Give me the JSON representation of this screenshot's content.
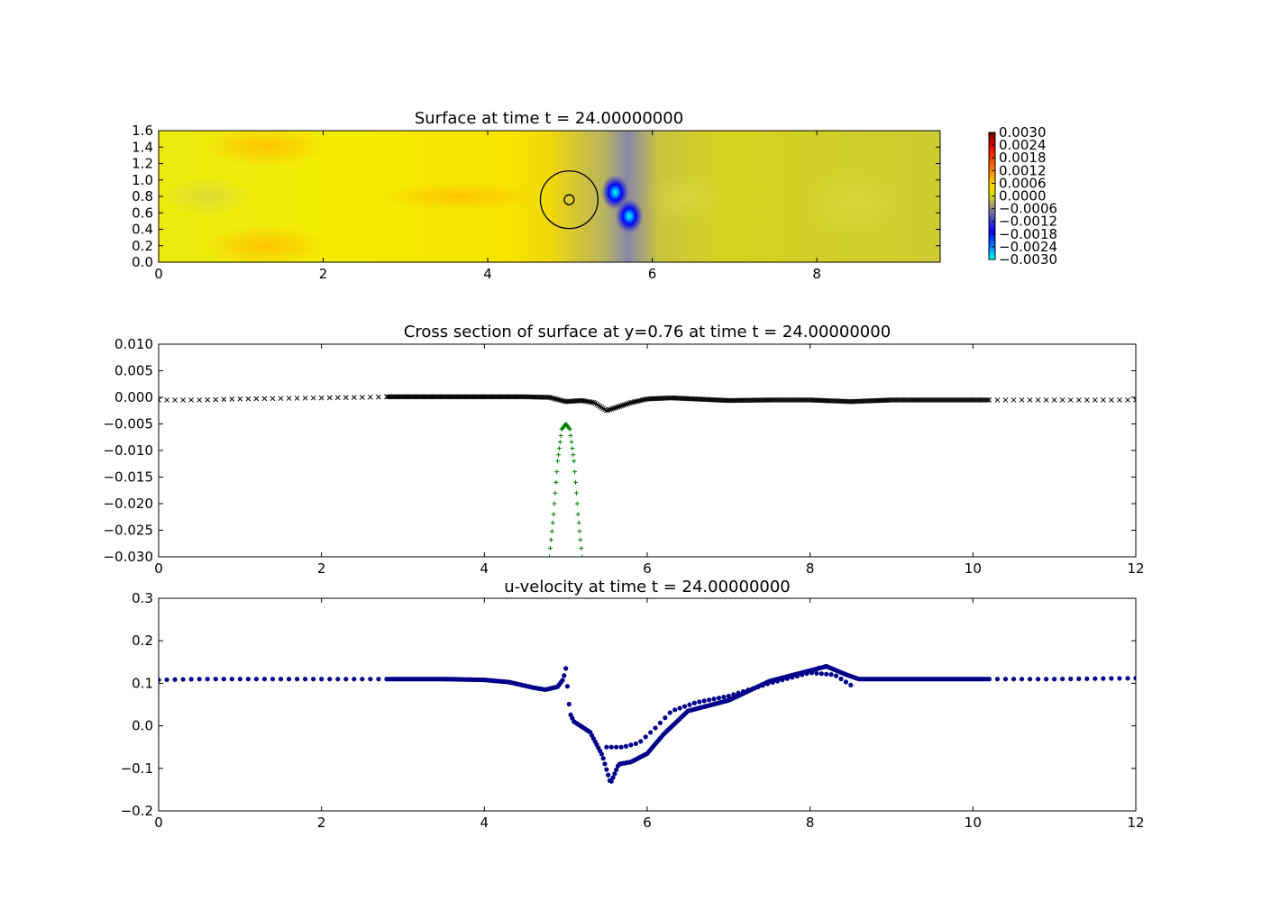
{
  "chart_data": [
    {
      "type": "heatmap",
      "title": "Surface at time t =    24.00000000",
      "xlabel": "",
      "ylabel": "",
      "xlim": [
        0,
        9.5
      ],
      "ylim": [
        0,
        1.6
      ],
      "x_ticks": [
        "0",
        "2",
        "4",
        "6",
        "8"
      ],
      "y_ticks": [
        "0.0",
        "0.2",
        "0.4",
        "0.6",
        "0.8",
        "1.0",
        "1.2",
        "1.4",
        "1.6"
      ],
      "colorbar": {
        "range": [
          -0.003,
          0.003
        ],
        "ticks": [
          "0.0030",
          "0.0024",
          "0.0018",
          "0.0012",
          "0.0006",
          "0.0000",
          "−0.0006",
          "−0.0012",
          "−0.0018",
          "−0.0024",
          "−0.0030"
        ]
      },
      "blobs": [
        {
          "x": 5.55,
          "y": 0.85,
          "value": -0.0027
        },
        {
          "x": 5.72,
          "y": 0.56,
          "value": -0.0027
        }
      ],
      "circles": [
        {
          "x": 4.99,
          "y": 0.76,
          "r": 0.35
        },
        {
          "x": 4.99,
          "y": 0.76,
          "r": 0.06
        }
      ],
      "grid": false,
      "legend": "none"
    },
    {
      "type": "scatter",
      "title": "Cross section of surface at y=0.76 at time t =    24.00000000",
      "xlabel": "",
      "ylabel": "",
      "xlim": [
        0,
        12
      ],
      "ylim": [
        -0.03,
        0.01
      ],
      "x_ticks": [
        "0",
        "2",
        "4",
        "6",
        "8",
        "10",
        "12"
      ],
      "y_ticks": [
        "0.010",
        "0.005",
        "0.000",
        "−0.005",
        "−0.010",
        "−0.015",
        "−0.020",
        "−0.025",
        "−0.030"
      ],
      "series": [
        {
          "marker": "x",
          "color": "#000000",
          "x": [
            0,
            0.5,
            1.0,
            1.5,
            2.0,
            2.5,
            2.8,
            3.5,
            4.0,
            4.5,
            4.8,
            5.0,
            5.2,
            5.35,
            5.5,
            5.6,
            5.8,
            6.0,
            6.3,
            7.0,
            7.5,
            8.0,
            8.5,
            9.0,
            9.5,
            10.2,
            11,
            12
          ],
          "y": [
            -0.0005,
            -0.0005,
            -0.0003,
            -0.0002,
            -0.0001,
            0.0,
            0.0001,
            0.0001,
            0.0001,
            0.0001,
            0.0,
            -0.0008,
            -0.0006,
            -0.001,
            -0.0025,
            -0.002,
            -0.001,
            -0.0003,
            -0.0001,
            -0.0006,
            -0.0005,
            -0.0005,
            -0.0008,
            -0.0005,
            -0.0005,
            -0.0005,
            -0.0005,
            -0.0005
          ]
        },
        {
          "marker": "+",
          "color": "#008000",
          "x": [
            4.8,
            4.85,
            4.9,
            4.95,
            5.0,
            5.05,
            5.1,
            5.15,
            5.2
          ],
          "y": [
            -0.03,
            -0.022,
            -0.012,
            -0.006,
            -0.005,
            -0.006,
            -0.012,
            -0.022,
            -0.03
          ]
        }
      ],
      "grid": false,
      "legend": "none"
    },
    {
      "type": "scatter",
      "title": "u-velocity at time t =    24.00000000",
      "xlabel": "",
      "ylabel": "",
      "xlim": [
        0,
        12
      ],
      "ylim": [
        -0.2,
        0.3
      ],
      "x_ticks": [
        "0",
        "2",
        "4",
        "6",
        "8",
        "10",
        "12"
      ],
      "y_ticks": [
        "0.3",
        "0.2",
        "0.1",
        "0.0",
        "−0.1",
        "−0.2"
      ],
      "series": [
        {
          "marker": "o",
          "color": "#00008b",
          "x": [
            0,
            0.5,
            1,
            2,
            3,
            3.5,
            4.0,
            4.3,
            4.6,
            4.75,
            4.9,
            4.97,
            5.0,
            5.05,
            5.1,
            5.3,
            5.45,
            5.55,
            5.65,
            5.8,
            6.0,
            6.2,
            6.5,
            7.0,
            7.5,
            8.0,
            8.2,
            8.45,
            8.6,
            9.0,
            9.5,
            10.2,
            11,
            12
          ],
          "y": [
            0.108,
            0.11,
            0.11,
            0.11,
            0.11,
            0.11,
            0.108,
            0.103,
            0.09,
            0.085,
            0.092,
            0.11,
            0.135,
            0.03,
            0.01,
            -0.015,
            -0.07,
            -0.135,
            -0.09,
            -0.085,
            -0.065,
            -0.02,
            0.035,
            0.06,
            0.105,
            0.13,
            0.14,
            0.12,
            0.11,
            0.11,
            0.11,
            0.11,
            0.11,
            0.112
          ]
        },
        {
          "marker": "o",
          "color": "#00008b",
          "x": [
            5.5,
            5.7,
            5.9,
            6.1,
            6.3,
            6.6,
            7.0,
            7.5,
            8.0,
            8.3,
            8.55
          ],
          "y": [
            -0.05,
            -0.05,
            -0.04,
            -0.005,
            0.035,
            0.055,
            0.07,
            0.1,
            0.125,
            0.12,
            0.09
          ]
        }
      ],
      "grid": false,
      "legend": "none"
    }
  ]
}
